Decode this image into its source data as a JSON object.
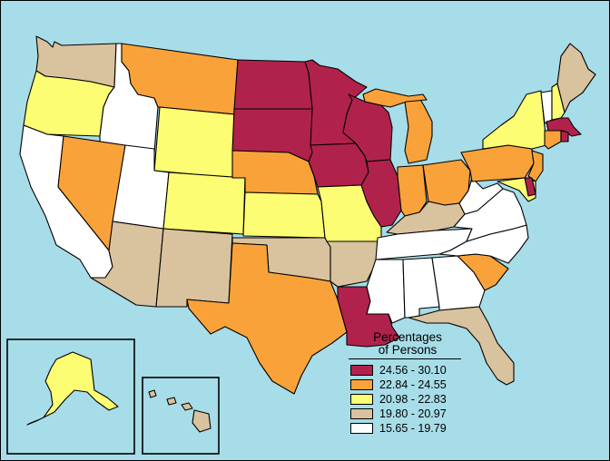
{
  "legend": {
    "title_line1": "Percentages",
    "title_line2": "of Persons",
    "items": [
      {
        "label": "24.56 - 30.10",
        "color": "#b0224c"
      },
      {
        "label": "22.84 - 24.55",
        "color": "#f9a23a"
      },
      {
        "label": "20.98 - 22.83",
        "color": "#fdfd73"
      },
      {
        "label": "19.80 - 20.97",
        "color": "#d9c29e"
      },
      {
        "label": "15.65 - 19.79",
        "color": "#ffffff"
      }
    ]
  },
  "class_by_state": {
    "ND": 0,
    "SD": 0,
    "MN": 0,
    "IA": 0,
    "WI": 0,
    "IL": 0,
    "LA": 0,
    "MA": 0,
    "RI": 0,
    "DE": 0,
    "MT": 1,
    "NV": 1,
    "TX": 1,
    "NE": 1,
    "MI": 1,
    "IN": 1,
    "OH": 1,
    "PA": 1,
    "SC": 1,
    "CT": 1,
    "NJ": 1,
    "OR": 2,
    "WY": 2,
    "CO": 2,
    "KS": 2,
    "MO": 2,
    "NY": 2,
    "NH": 2,
    "MD": 2,
    "AK": 2,
    "WA": 3,
    "AZ": 3,
    "NM": 3,
    "OK": 3,
    "AR": 3,
    "KY": 3,
    "FL": 3,
    "ME": 3,
    "HI": 3,
    "CA": 4,
    "ID": 4,
    "UT": 4,
    "MS": 4,
    "AL": 4,
    "GA": 4,
    "TN": 4,
    "NC": 4,
    "VA": 4,
    "WV": 4,
    "VT": 4
  },
  "colors": {
    "water": "#a7dde8",
    "border": "#000000"
  }
}
